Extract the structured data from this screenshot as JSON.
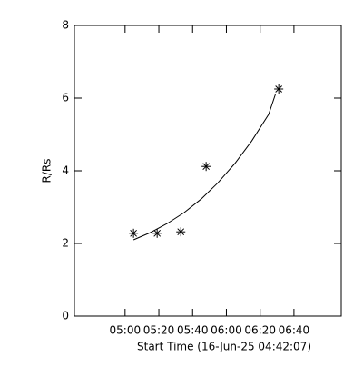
{
  "chart_data": {
    "type": "scatter",
    "x_label": "Start Time (16-Jun-25 04:42:07)",
    "y_label": "R/Rs",
    "xlim": [
      "04:30",
      "07:08"
    ],
    "xticks": [
      "05:00",
      "05:20",
      "05:40",
      "06:00",
      "06:20",
      "06:40"
    ],
    "ylim": [
      0,
      8
    ],
    "yticks": [
      0,
      2,
      4,
      6,
      8
    ],
    "series": [
      {
        "kind": "points",
        "marker": "*",
        "color": "#000000",
        "x": [
          "05:05",
          "05:19",
          "05:33",
          "05:48",
          "06:31"
        ],
        "values": [
          2.28,
          2.28,
          2.32,
          4.12,
          6.25
        ]
      },
      {
        "kind": "line",
        "color": "#000000",
        "x": [
          "05:05",
          "05:15",
          "05:25",
          "05:35",
          "05:45",
          "05:55",
          "06:05",
          "06:15",
          "06:25",
          "06:29"
        ],
        "values": [
          2.1,
          2.3,
          2.55,
          2.85,
          3.22,
          3.67,
          4.2,
          4.82,
          5.55,
          6.1
        ]
      }
    ]
  }
}
